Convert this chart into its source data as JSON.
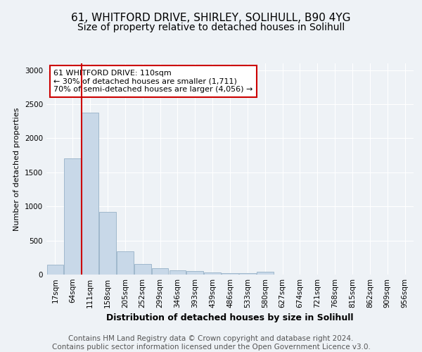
{
  "title": "61, WHITFORD DRIVE, SHIRLEY, SOLIHULL, B90 4YG",
  "subtitle": "Size of property relative to detached houses in Solihull",
  "xlabel": "Distribution of detached houses by size in Solihull",
  "ylabel": "Number of detached properties",
  "bar_labels": [
    "17sqm",
    "64sqm",
    "111sqm",
    "158sqm",
    "205sqm",
    "252sqm",
    "299sqm",
    "346sqm",
    "393sqm",
    "439sqm",
    "486sqm",
    "533sqm",
    "580sqm",
    "627sqm",
    "674sqm",
    "721sqm",
    "768sqm",
    "815sqm",
    "862sqm",
    "909sqm",
    "956sqm"
  ],
  "bar_values": [
    140,
    1700,
    2380,
    920,
    340,
    150,
    95,
    60,
    50,
    30,
    25,
    20,
    40,
    0,
    0,
    0,
    0,
    0,
    0,
    0,
    0
  ],
  "bar_color": "#c8d8e8",
  "bar_edge_color": "#a0b8cc",
  "vline_index": 1.5,
  "vline_color": "#cc0000",
  "annotation_text": "61 WHITFORD DRIVE: 110sqm\n← 30% of detached houses are smaller (1,711)\n70% of semi-detached houses are larger (4,056) →",
  "annotation_box_color": "#ffffff",
  "annotation_box_edge": "#cc0000",
  "ylim": [
    0,
    3100
  ],
  "yticks": [
    0,
    500,
    1000,
    1500,
    2000,
    2500,
    3000
  ],
  "footer_text": "Contains HM Land Registry data © Crown copyright and database right 2024.\nContains public sector information licensed under the Open Government Licence v3.0.",
  "background_color": "#eef2f6",
  "plot_background": "#eef2f6",
  "title_fontsize": 11,
  "subtitle_fontsize": 10,
  "xlabel_fontsize": 9,
  "ylabel_fontsize": 8,
  "tick_fontsize": 7.5,
  "footer_fontsize": 7.5
}
